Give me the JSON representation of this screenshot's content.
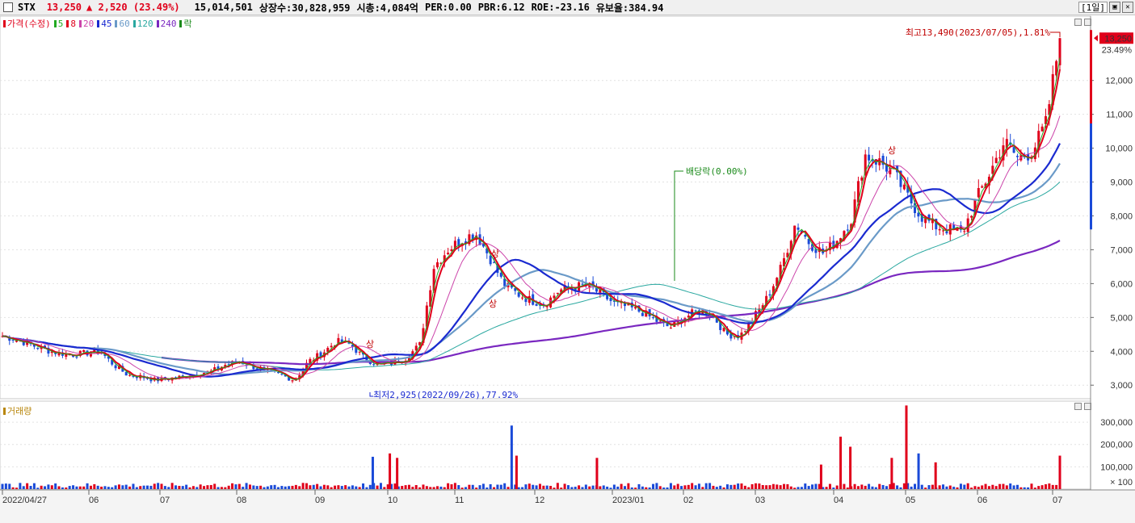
{
  "header": {
    "ticker": "STX",
    "price": "13,250",
    "change": "▲ 2,520",
    "change_pct": "(23.49%)",
    "volume": "15,014,501",
    "listed_shares": "상장수:30,828,959",
    "market_cap": "시총:4,084억",
    "per": "PER:0.00",
    "pbr": "PBR:6.12",
    "roe": "ROE:-23.16",
    "reserve_ratio": "유보율:384.94",
    "period": "[1일]"
  },
  "legend": [
    {
      "label": "가격(수정)",
      "color": "#e0001b"
    },
    {
      "label": "5",
      "color": "#22aa22"
    },
    {
      "label": "8",
      "color": "#e0001b"
    },
    {
      "label": "20",
      "color": "#cc44aa"
    },
    {
      "label": "45",
      "color": "#1a2ad0"
    },
    {
      "label": "60",
      "color": "#6a9ac8"
    },
    {
      "label": "120",
      "color": "#2aa8a0"
    },
    {
      "label": "240",
      "color": "#7a28c0"
    },
    {
      "label": "락",
      "color": "#1a8a1a"
    }
  ],
  "volume_legend": "거래량",
  "annotations": {
    "high": "최고13,490(2023/07/05),1.81%",
    "low": "최저2,925(2022/09/26),77.92%",
    "dividend": "배당락(0.00%)",
    "price_box": "13,250",
    "pct_label": "23.49%",
    "upper_limit_marker": "상"
  },
  "chart_data": [
    {
      "type": "candlestick",
      "title": "STX 가격(수정)",
      "x_labels": [
        "2022/04/27",
        "06",
        "07",
        "08",
        "09",
        "10",
        "11",
        "12",
        "2023/01",
        "02",
        "03",
        "04",
        "05",
        "06",
        "07"
      ],
      "y_ticks": [
        "3,000",
        "4,000",
        "5,000",
        "6,000",
        "7,000",
        "8,000",
        "9,000",
        "10,000",
        "11,000",
        "12,000"
      ],
      "ylim": [
        2600,
        13900
      ],
      "closes": [
        4450,
        4350,
        4200,
        4050,
        3950,
        3900,
        3950,
        4000,
        3600,
        3300,
        3250,
        3150,
        3200,
        3250,
        3350,
        3400,
        3600,
        3700,
        3550,
        3400,
        3300,
        3150,
        3700,
        3950,
        4300,
        4200,
        3800,
        3600,
        3650,
        3800,
        4200,
        6500,
        7000,
        7300,
        7500,
        6800,
        6000,
        5700,
        5500,
        5400,
        5800,
        5900,
        5950,
        5700,
        5400,
        5300,
        5150,
        4900,
        4700,
        5000,
        5200,
        5100,
        4500,
        4450,
        5000,
        5600,
        6500,
        7800,
        7200,
        6900,
        7300,
        7900,
        9800,
        9600,
        9300,
        8600,
        8000,
        7700,
        7600,
        7500,
        8500,
        9300,
        10200,
        9700,
        9900,
        10730,
        13250
      ],
      "ma_periods": [
        5,
        8,
        20,
        45,
        60,
        120,
        240
      ],
      "high": {
        "value": 13490,
        "date": "2023/07/05",
        "pct": 1.81
      },
      "low": {
        "value": 2925,
        "date": "2022/09/26",
        "pct": 77.92
      },
      "last": {
        "value": 13250,
        "change": 2520,
        "change_pct": 23.49
      },
      "events": [
        {
          "type": "dividend",
          "label": "배당락(0.00%)"
        }
      ]
    },
    {
      "type": "bar",
      "title": "거래량",
      "y_ticks": [
        "100,000",
        "200,000",
        "300,000"
      ],
      "y_unit": "× 100",
      "ylim": [
        0,
        380000
      ],
      "spikes": [
        {
          "date": "2022/09/26",
          "value": 145000,
          "up": false
        },
        {
          "date": "2022/10/03",
          "value": 160000,
          "up": true
        },
        {
          "date": "2022/10/06",
          "value": 140000,
          "up": true
        },
        {
          "date": "2022/11/22",
          "value": 285000,
          "up": false
        },
        {
          "date": "2022/11/24",
          "value": 150000,
          "up": true
        },
        {
          "date": "2022/12/27",
          "value": 140000,
          "up": true
        },
        {
          "date": "2023/03/29",
          "value": 110000,
          "up": true
        },
        {
          "date": "2023/04/06",
          "value": 235000,
          "up": true
        },
        {
          "date": "2023/04/10",
          "value": 190000,
          "up": true
        },
        {
          "date": "2023/04/27",
          "value": 140000,
          "up": true
        },
        {
          "date": "2023/05/03",
          "value": 375000,
          "up": true
        },
        {
          "date": "2023/05/08",
          "value": 160000,
          "up": false
        },
        {
          "date": "2023/05/15",
          "value": 120000,
          "up": true
        },
        {
          "date": "2023/07/05",
          "value": 150000,
          "up": true
        }
      ]
    }
  ],
  "colors": {
    "up": "#e0001b",
    "down": "#1a4ad8",
    "grid": "#e2e2e2",
    "ma5": "#22aa22",
    "ma8": "#e0001b",
    "ma20": "#cc44aa",
    "ma45": "#1a2ad0",
    "ma60": "#6a9ac8",
    "ma120": "#2aa8a0",
    "ma240": "#7a28c0"
  }
}
